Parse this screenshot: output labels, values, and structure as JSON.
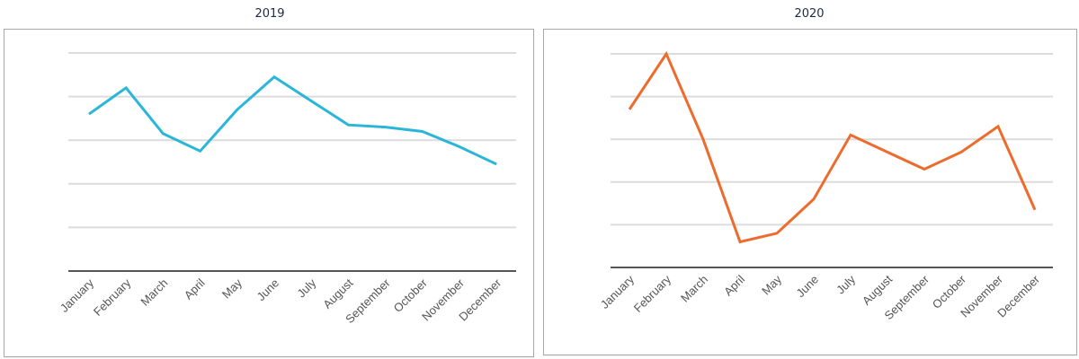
{
  "charts": [
    {
      "title": "2019",
      "color": "#29b6d8"
    },
    {
      "title": "2020",
      "color": "#ed6b2d"
    }
  ],
  "chart_data": [
    {
      "type": "line",
      "title": "2019",
      "xlabel": "",
      "ylabel": "",
      "categories": [
        "January",
        "February",
        "March",
        "April",
        "May",
        "June",
        "July",
        "August",
        "September",
        "October",
        "November",
        "December"
      ],
      "series": [
        {
          "name": "2019",
          "color": "#29b6d8",
          "values": [
            3.6,
            4.2,
            3.15,
            2.75,
            3.7,
            4.45,
            3.9,
            3.35,
            3.3,
            3.2,
            2.85,
            2.45
          ]
        }
      ],
      "ylim": [
        0,
        5
      ],
      "y_tick_labels_visible": false,
      "grid": true,
      "legend": "none"
    },
    {
      "type": "line",
      "title": "2020",
      "xlabel": "",
      "ylabel": "",
      "categories": [
        "January",
        "February",
        "March",
        "April",
        "May",
        "June",
        "July",
        "August",
        "September",
        "October",
        "November",
        "December"
      ],
      "series": [
        {
          "name": "2020",
          "color": "#ed6b2d",
          "values": [
            3.7,
            5.0,
            3.0,
            0.6,
            0.8,
            1.6,
            3.1,
            2.7,
            2.3,
            2.7,
            3.3,
            1.35
          ]
        }
      ],
      "ylim": [
        0,
        5
      ],
      "y_tick_labels_visible": false,
      "grid": true,
      "legend": "none"
    }
  ]
}
